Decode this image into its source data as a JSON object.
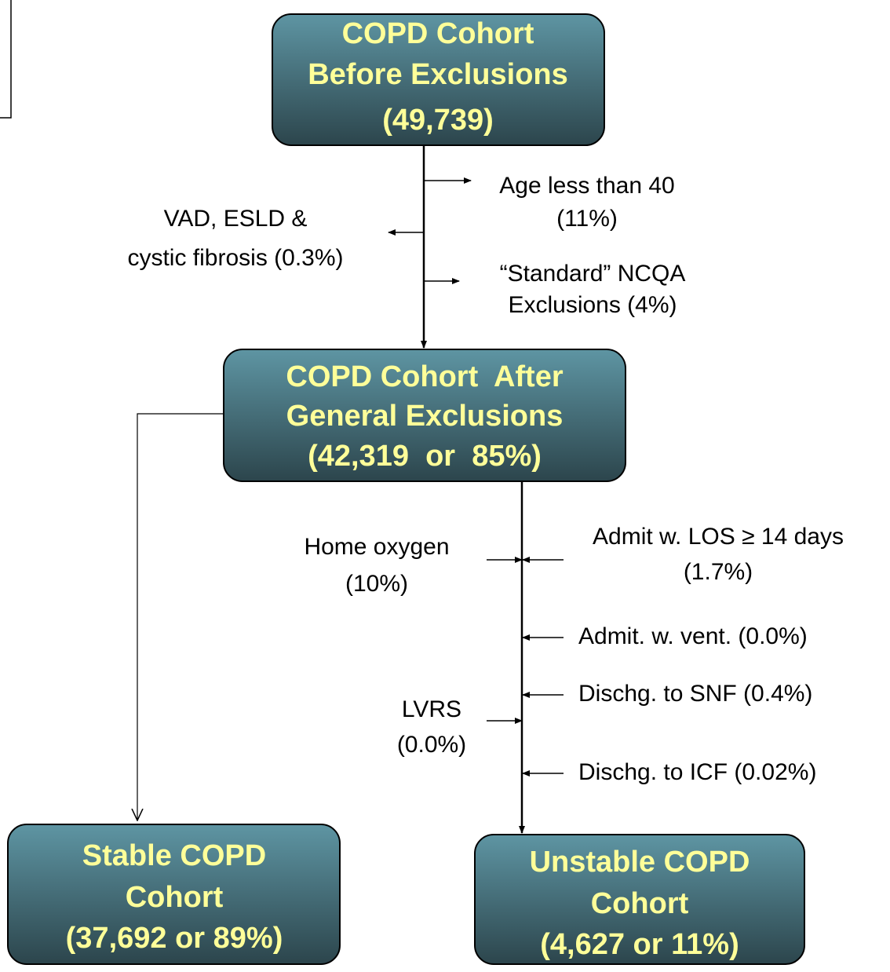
{
  "nodes": [
    {
      "lines": [
        "COPD Cohort",
        "Before Exclusions",
        "(49,739)"
      ]
    },
    {
      "lines": [
        "COPD Cohort  After",
        "General Exclusions",
        "(42,319  or  85%)"
      ]
    },
    {
      "lines": [
        "Stable COPD",
        "Cohort",
        "(37,692 or 89%)"
      ]
    },
    {
      "lines": [
        "Unstable COPD",
        "Cohort",
        "(4,627 or 11%)"
      ]
    }
  ],
  "exclusions": [
    {
      "lines": [
        "Age less than 40",
        "(11%)"
      ]
    },
    {
      "lines": [
        "VAD, ESLD &",
        "cystic fibrosis (0.3%)"
      ]
    },
    {
      "lines": [
        "“Standard” NCQA",
        "Exclusions (4%)"
      ]
    },
    {
      "lines": [
        "Home oxygen",
        "(10%)"
      ]
    },
    {
      "lines": [
        "Admit w. LOS ≥ 14 days",
        "(1.7%)"
      ]
    },
    {
      "lines": [
        "Admit. w. vent. (0.0%)"
      ]
    },
    {
      "lines": [
        "Dischg. to SNF (0.4%)"
      ]
    },
    {
      "lines": [
        "LVRS",
        "(0.0%)"
      ]
    },
    {
      "lines": [
        "Dischg. to ICF (0.02%)"
      ]
    }
  ]
}
